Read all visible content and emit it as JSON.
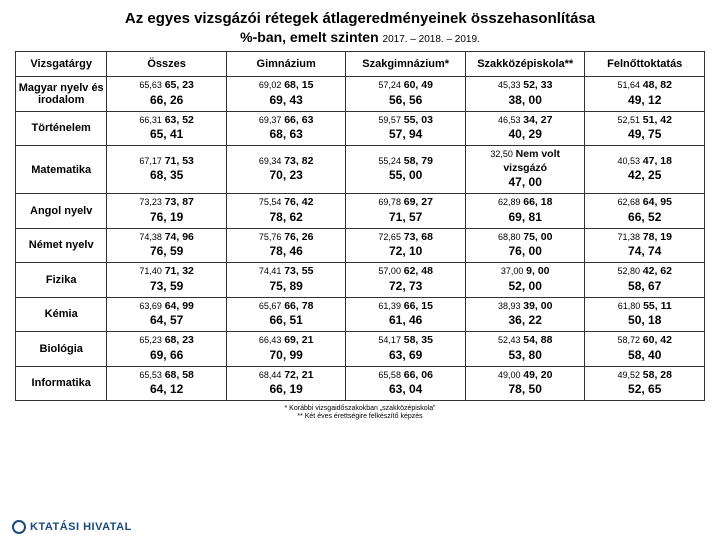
{
  "title": "Az egyes vizsgázói rétegek átlageredményeinek összehasonlítása",
  "subtitle": "%-ban, emelt szinten",
  "years": "2017. – 2018. – 2019.",
  "columns": [
    "Vizsgatárgy",
    "Összes",
    "Gimnázium",
    "Szakgimnázium*",
    "Szakközépiskola**",
    "Felnőttoktatás"
  ],
  "rows": [
    {
      "s": "Magyar nyelv és irodalom",
      "c": [
        [
          "65,63",
          "65, 23",
          "66, 26"
        ],
        [
          "69,02",
          "68, 15",
          "69, 43"
        ],
        [
          "57,24",
          "60, 49",
          "56, 56"
        ],
        [
          "45,33",
          "52, 33",
          "38, 00"
        ],
        [
          "51,64",
          "48, 82",
          "49, 12"
        ]
      ]
    },
    {
      "s": "Történelem",
      "c": [
        [
          "66,31",
          "63, 52",
          "65, 41"
        ],
        [
          "69,37",
          "66, 63",
          "68, 63"
        ],
        [
          "59,57",
          "55, 03",
          "57, 94"
        ],
        [
          "46,53",
          "34, 27",
          "40, 29"
        ],
        [
          "52,51",
          "51, 42",
          "49, 75"
        ]
      ]
    },
    {
      "s": "Matematika",
      "c": [
        [
          "67,17",
          "71, 53",
          "68, 35"
        ],
        [
          "69,34",
          "73, 82",
          "70, 23"
        ],
        [
          "55,24",
          "58, 79",
          "55, 00"
        ],
        [
          "32,50",
          "Nem volt vizsgázó",
          "47, 00"
        ],
        [
          "40,53",
          "47, 18",
          "42, 25"
        ]
      ]
    },
    {
      "s": "Angol nyelv",
      "c": [
        [
          "73,23",
          "73, 87",
          "76, 19"
        ],
        [
          "75,54",
          "76, 42",
          "78, 62"
        ],
        [
          "69,78",
          "69, 27",
          "71, 57"
        ],
        [
          "62,89",
          "66, 18",
          "69, 81"
        ],
        [
          "62,68",
          "64, 95",
          "66, 52"
        ]
      ]
    },
    {
      "s": "Német nyelv",
      "c": [
        [
          "74,38",
          "74, 96",
          "76, 59"
        ],
        [
          "75,76",
          "76, 26",
          "78, 46"
        ],
        [
          "72,65",
          "73, 68",
          "72, 10"
        ],
        [
          "68,80",
          "75, 00",
          "76, 00"
        ],
        [
          "71,38",
          "78, 19",
          "74, 74"
        ]
      ]
    },
    {
      "s": "Fizika",
      "c": [
        [
          "71,40",
          "71, 32",
          "73, 59"
        ],
        [
          "74,41",
          "73, 55",
          "75, 89"
        ],
        [
          "57,00",
          "62, 48",
          "72, 73"
        ],
        [
          "37,00",
          "9, 00",
          "52, 00"
        ],
        [
          "52,80",
          "42, 62",
          "58, 67"
        ]
      ]
    },
    {
      "s": "Kémia",
      "c": [
        [
          "63,69",
          "64, 99",
          "64, 57"
        ],
        [
          "65,67",
          "66, 78",
          "66, 51"
        ],
        [
          "61,39",
          "66, 15",
          "61, 46"
        ],
        [
          "38,93",
          "39, 00",
          "36, 22"
        ],
        [
          "61,80",
          "55, 11",
          "50, 18"
        ]
      ]
    },
    {
      "s": "Biológia",
      "c": [
        [
          "65,23",
          "68, 23",
          "69, 66"
        ],
        [
          "66,43",
          "69, 21",
          "70, 99"
        ],
        [
          "54,17",
          "58, 35",
          "63, 69"
        ],
        [
          "52,43",
          "54, 88",
          "53, 80"
        ],
        [
          "58,72",
          "60, 42",
          "58, 40"
        ]
      ]
    },
    {
      "s": "Informatika",
      "c": [
        [
          "65,53",
          "68, 58",
          "64, 12"
        ],
        [
          "68,44",
          "72, 21",
          "66, 19"
        ],
        [
          "65,58",
          "66, 06",
          "63, 04"
        ],
        [
          "49,00",
          "49, 20",
          "78, 50"
        ],
        [
          "49,52",
          "58, 28",
          "52, 65"
        ]
      ]
    }
  ],
  "notes": [
    "*   Korábbi vizsgaidőszakokban „szakközépiskola”",
    "**  Két éves érettségire felkészítő képzés"
  ],
  "logo": "KTATÁSI HIVATAL"
}
